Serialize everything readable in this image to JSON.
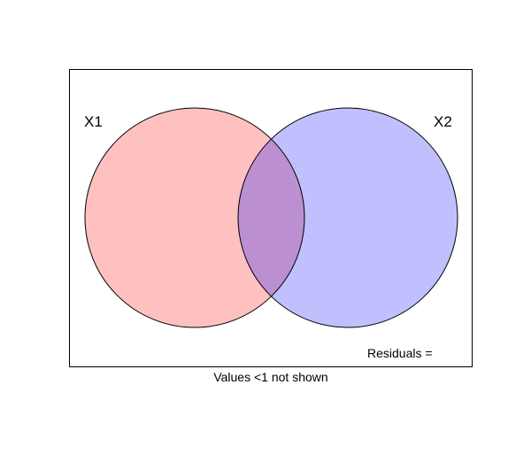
{
  "diagram": {
    "type": "venn",
    "sets": [
      {
        "label": "X1",
        "fill": "#ff9999",
        "stroke": "#000000"
      },
      {
        "label": "X2",
        "fill": "#9999ff",
        "stroke": "#000000"
      }
    ],
    "overlap_fill": "#bb8fd0",
    "residuals_label": "Residuals =",
    "note": "Values <1 not shown",
    "frame_stroke": "#000000"
  }
}
